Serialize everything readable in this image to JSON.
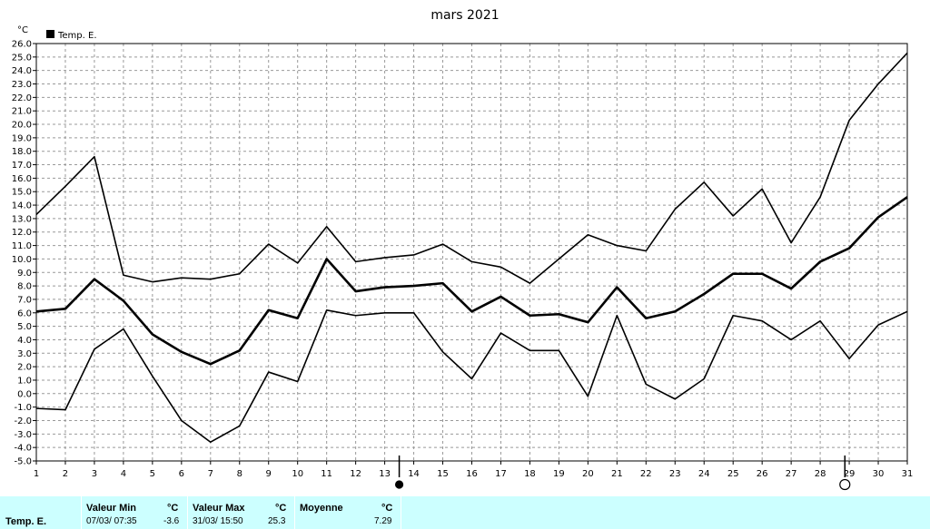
{
  "chart_data": {
    "type": "line",
    "title": "mars 2021",
    "ylabel": "°C",
    "legend": {
      "label": "Temp. E.",
      "placement": "top-left"
    },
    "x": [
      1,
      2,
      3,
      4,
      5,
      6,
      7,
      8,
      9,
      10,
      11,
      12,
      13,
      14,
      15,
      16,
      17,
      18,
      19,
      20,
      21,
      22,
      23,
      24,
      25,
      26,
      27,
      28,
      29,
      30,
      31
    ],
    "xlim": [
      1,
      31
    ],
    "ylim": [
      -5.0,
      26.0
    ],
    "ytick_step": 1.0,
    "grid": true,
    "series": [
      {
        "role": "max",
        "values": [
          13.3,
          15.4,
          17.6,
          8.8,
          8.3,
          8.6,
          8.5,
          8.9,
          11.1,
          9.7,
          12.4,
          9.8,
          10.1,
          10.3,
          11.1,
          9.8,
          9.4,
          8.2,
          10.0,
          11.8,
          11.0,
          10.6,
          13.7,
          15.7,
          13.2,
          15.2,
          11.2,
          14.6,
          20.3,
          23.0,
          25.3
        ]
      },
      {
        "role": "mean",
        "values": [
          6.1,
          6.3,
          8.5,
          6.9,
          4.4,
          3.1,
          2.2,
          3.2,
          6.2,
          5.6,
          10.0,
          7.6,
          7.9,
          8.0,
          8.2,
          6.1,
          7.2,
          5.8,
          5.9,
          5.3,
          7.9,
          5.6,
          6.1,
          7.4,
          8.9,
          8.9,
          7.8,
          9.8,
          10.8,
          13.1,
          14.6
        ]
      },
      {
        "role": "min",
        "values": [
          -1.1,
          -1.2,
          3.3,
          4.8,
          1.3,
          -2.0,
          -3.6,
          -2.4,
          1.6,
          0.9,
          6.2,
          5.8,
          6.0,
          6.0,
          3.1,
          1.1,
          4.5,
          3.2,
          3.2,
          -0.2,
          5.8,
          0.7,
          -0.4,
          1.1,
          5.8,
          5.4,
          4.0,
          5.4,
          2.6,
          5.1,
          6.1
        ]
      }
    ],
    "moon_phases": [
      {
        "day": 13.5,
        "phase": "new-moon"
      },
      {
        "day": 28.85,
        "phase": "full-moon"
      }
    ]
  },
  "stats": {
    "row_label": "Temp. E.",
    "min_header": "Valeur Min",
    "min_unit": "°C",
    "min_datetime": "07/03/  07:35",
    "min_value": "-3.6",
    "max_header": "Valeur Max",
    "max_unit": "°C",
    "max_datetime": "31/03/  15:50",
    "max_value": "25.3",
    "mean_header": "Moyenne",
    "mean_unit": "°C",
    "mean_value": "7.29"
  }
}
